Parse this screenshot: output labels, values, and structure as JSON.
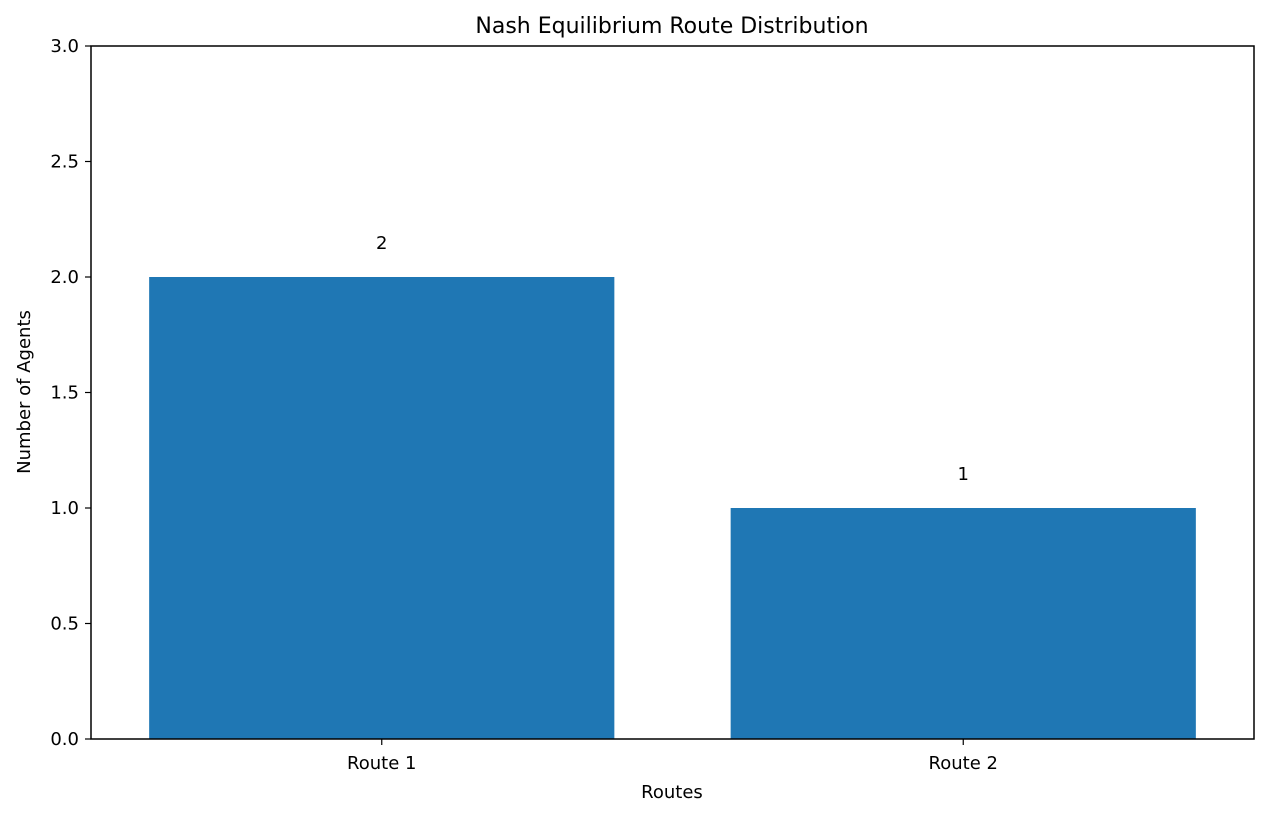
{
  "chart_data": {
    "type": "bar",
    "title": "Nash Equilibrium Route Distribution",
    "xlabel": "Routes",
    "ylabel": "Number of Agents",
    "categories": [
      "Route 1",
      "Route 2"
    ],
    "values": [
      2,
      1
    ],
    "data_labels": [
      "2",
      "1"
    ],
    "ylim": [
      0,
      3
    ],
    "yticks": [
      0.0,
      0.5,
      1.0,
      1.5,
      2.0,
      2.5,
      3.0
    ],
    "ytick_labels": [
      "0.0",
      "0.5",
      "1.0",
      "1.5",
      "2.0",
      "2.5",
      "3.0"
    ],
    "grid": false,
    "bar_color": "#1f77b4"
  }
}
